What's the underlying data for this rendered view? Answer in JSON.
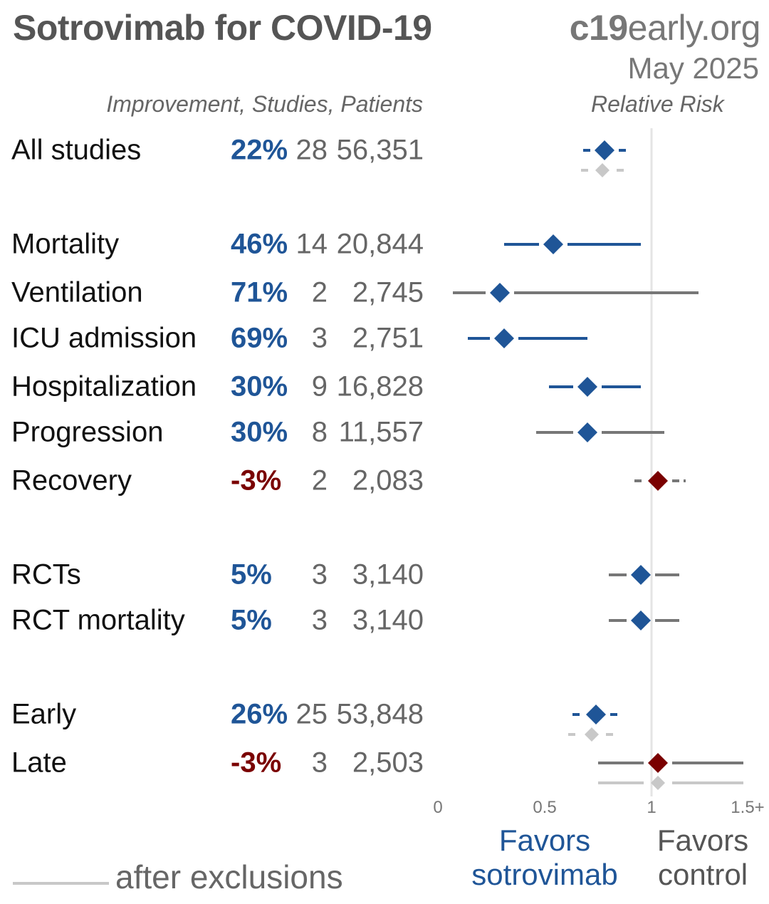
{
  "header": {
    "title": "Sotrovimab for COVID-19",
    "site_bold": "c19",
    "site_rest": "early.org",
    "date": "May 2025",
    "columns_label": "Improvement, Studies, Patients",
    "rr_label": "Relative Risk"
  },
  "colors": {
    "favors_treatment": "#1f5597",
    "favors_control": "#7a0000",
    "ci_blue": "#1f5597",
    "ci_gray": "#777777",
    "after_exclusions": "#c8c8c8",
    "reference_line": "#e4e4e4"
  },
  "chart_data": {
    "type": "forest",
    "title": "Sotrovimab for COVID-19",
    "xlabel": "Relative Risk",
    "x_ticks": [
      "0",
      "0.5",
      "1",
      "1.5+"
    ],
    "x_tick_values": [
      0,
      0.5,
      1,
      1.5
    ],
    "xlim": [
      0,
      1.5
    ],
    "reference_value": 1,
    "favors_left": "Favors sotrovimab",
    "favors_right": "Favors control",
    "rows": [
      {
        "label": "All studies",
        "improvement": "22%",
        "studies": "28",
        "patients": "56,351",
        "rr": 0.78,
        "ci": [
          0.68,
          0.9
        ],
        "ci_color": "blue",
        "dashed": true,
        "exclusion": {
          "rr": 0.77,
          "ci": [
            0.67,
            0.88
          ]
        }
      },
      {
        "label": "Mortality",
        "improvement": "46%",
        "studies": "14",
        "patients": "20,844",
        "rr": 0.54,
        "ci": [
          0.31,
          0.95
        ],
        "ci_color": "blue",
        "dashed": false
      },
      {
        "label": "Ventilation",
        "improvement": "71%",
        "studies": "2",
        "patients": "2,745",
        "rr": 0.29,
        "ci": [
          0.07,
          1.22
        ],
        "ci_color": "gray",
        "dashed": false
      },
      {
        "label": "ICU admission",
        "improvement": "69%",
        "studies": "3",
        "patients": "2,751",
        "rr": 0.31,
        "ci": [
          0.14,
          0.7
        ],
        "ci_color": "blue",
        "dashed": false
      },
      {
        "label": "Hospitalization",
        "improvement": "30%",
        "studies": "9",
        "patients": "16,828",
        "rr": 0.7,
        "ci": [
          0.52,
          0.95
        ],
        "ci_color": "blue",
        "dashed": false
      },
      {
        "label": "Progression",
        "improvement": "30%",
        "studies": "8",
        "patients": "11,557",
        "rr": 0.7,
        "ci": [
          0.46,
          1.06
        ],
        "ci_color": "gray",
        "dashed": false
      },
      {
        "label": "Recovery",
        "improvement": "-3%",
        "studies": "2",
        "patients": "2,083",
        "rr": 1.03,
        "ci": [
          0.92,
          1.16
        ],
        "ci_color": "gray",
        "dashed": true
      },
      {
        "label": "RCTs",
        "improvement": "5%",
        "studies": "3",
        "patients": "3,140",
        "rr": 0.95,
        "ci": [
          0.8,
          1.13
        ],
        "ci_color": "gray",
        "dashed": false
      },
      {
        "label": "RCT mortality",
        "improvement": "5%",
        "studies": "3",
        "patients": "3,140",
        "rr": 0.95,
        "ci": [
          0.8,
          1.13
        ],
        "ci_color": "gray",
        "dashed": false
      },
      {
        "label": "Early",
        "improvement": "26%",
        "studies": "25",
        "patients": "53,848",
        "rr": 0.74,
        "ci": [
          0.63,
          0.86
        ],
        "ci_color": "blue",
        "dashed": true,
        "exclusion": {
          "rr": 0.72,
          "ci": [
            0.61,
            0.84
          ]
        }
      },
      {
        "label": "Late",
        "improvement": "-3%",
        "studies": "3",
        "patients": "2,503",
        "rr": 1.03,
        "ci": [
          0.75,
          1.43
        ],
        "ci_color": "gray",
        "dashed": false,
        "exclusion": {
          "rr": 1.03,
          "ci": [
            0.75,
            1.43
          ]
        }
      }
    ]
  },
  "favors": {
    "left_line1": "Favors",
    "left_line2": "sotrovimab",
    "right_line1": "Favors",
    "right_line2": "control"
  },
  "legend": {
    "after_exclusions": "after exclusions"
  }
}
